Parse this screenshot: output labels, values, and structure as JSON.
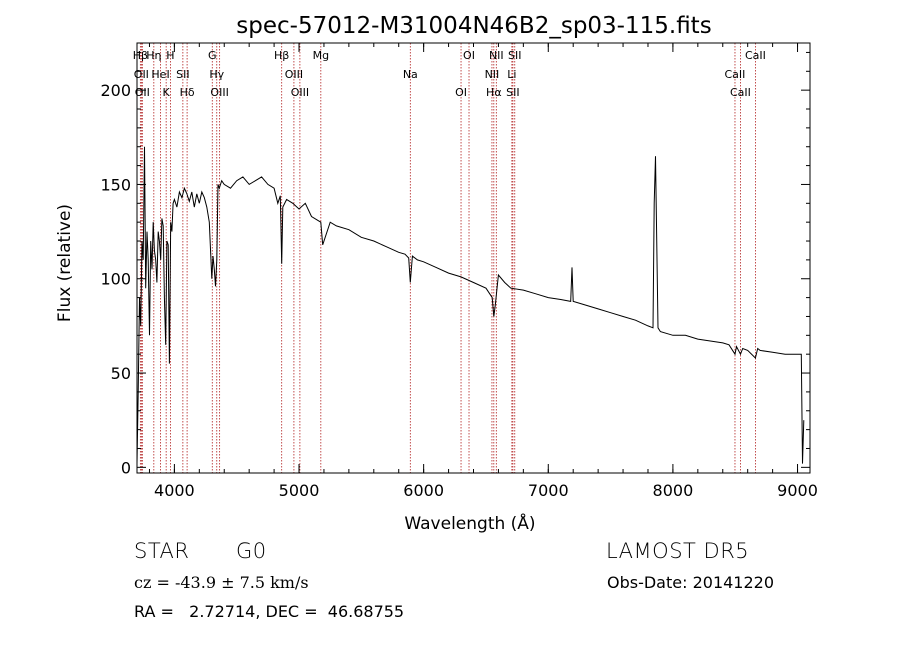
{
  "chart_data": {
    "type": "line",
    "title": "spec-57012-M31004N46B2_sp03-115.fits",
    "xlabel": "Wavelength (Å)",
    "ylabel": "Flux (relative)",
    "xlim": [
      3700,
      9100
    ],
    "ylim": [
      -3,
      225
    ],
    "xticks": [
      "4000",
      "5000",
      "6000",
      "7000",
      "8000",
      "9000"
    ],
    "yticks": [
      "0",
      "50",
      "100",
      "150",
      "200"
    ],
    "grid": false,
    "series": [
      {
        "x": [
          3700,
          3710,
          3720,
          3730,
          3740,
          3750,
          3760,
          3770,
          3780,
          3790,
          3800,
          3810,
          3820,
          3830,
          3840,
          3850,
          3860,
          3870,
          3880,
          3890,
          3900,
          3910,
          3920,
          3930,
          3940,
          3950,
          3960,
          3970,
          3980,
          3990,
          4000,
          4020,
          4040,
          4060,
          4080,
          4100,
          4120,
          4140,
          4160,
          4180,
          4200,
          4220,
          4240,
          4260,
          4280,
          4300,
          4310,
          4320,
          4330,
          4340,
          4350,
          4360,
          4380,
          4400,
          4450,
          4500,
          4550,
          4600,
          4650,
          4700,
          4750,
          4800,
          4830,
          4850,
          4861,
          4870,
          4900,
          4950,
          5000,
          5050,
          5100,
          5150,
          5175,
          5190,
          5250,
          5300,
          5400,
          5500,
          5600,
          5700,
          5800,
          5850,
          5880,
          5893,
          5910,
          5950,
          6000,
          6100,
          6200,
          6300,
          6400,
          6500,
          6550,
          6563,
          6575,
          6600,
          6650,
          6700,
          6800,
          6900,
          7000,
          7100,
          7180,
          7190,
          7200,
          7300,
          7400,
          7500,
          7600,
          7700,
          7800,
          7840,
          7850,
          7860,
          7880,
          7900,
          8000,
          8100,
          8200,
          8300,
          8400,
          8450,
          8498,
          8510,
          8542,
          8560,
          8600,
          8662,
          8680,
          8700,
          8800,
          8900,
          9000,
          9030,
          9040,
          9050
        ],
        "values": [
          2,
          40,
          90,
          75,
          120,
          110,
          170,
          95,
          125,
          110,
          70,
          120,
          105,
          130,
          115,
          110,
          98,
          125,
          120,
          110,
          132,
          128,
          90,
          65,
          120,
          118,
          55,
          130,
          125,
          140,
          142,
          138,
          146,
          143,
          148,
          145,
          141,
          146,
          138,
          145,
          140,
          146,
          143,
          138,
          130,
          100,
          112,
          105,
          96,
          110,
          150,
          148,
          152,
          150,
          148,
          152,
          154,
          150,
          152,
          154,
          150,
          148,
          140,
          144,
          108,
          138,
          142,
          140,
          137,
          140,
          133,
          131,
          130,
          118,
          130,
          128,
          126,
          122,
          120,
          117,
          114,
          113,
          111,
          98,
          112,
          110,
          109,
          106,
          103,
          101,
          98,
          95,
          90,
          80,
          86,
          102,
          98,
          95,
          94,
          92,
          90,
          89,
          88,
          106,
          88,
          86,
          84,
          82,
          80,
          78,
          75,
          74,
          140,
          165,
          74,
          72,
          70,
          70,
          68,
          67,
          66,
          65,
          60,
          64,
          60,
          63,
          62,
          58,
          63,
          62,
          61,
          60,
          60,
          60,
          2,
          25
        ]
      }
    ],
    "annotations": [
      {
        "name": "Hβ",
        "x": 3727
      },
      {
        "name": "OII",
        "x": 3735
      },
      {
        "name": "OII",
        "x": 3743
      },
      {
        "name": "Hη",
        "x": 3835
      },
      {
        "name": "HeI",
        "x": 3889
      },
      {
        "name": "K",
        "x": 3934
      },
      {
        "name": "H",
        "x": 3968
      },
      {
        "name": "SII",
        "x": 4068
      },
      {
        "name": "Hδ",
        "x": 4102
      },
      {
        "name": "G",
        "x": 4304
      },
      {
        "name": "Hγ",
        "x": 4340
      },
      {
        "name": "OIII",
        "x": 4363
      },
      {
        "name": "Hβ",
        "x": 4861
      },
      {
        "name": "OIII",
        "x": 4959
      },
      {
        "name": "OIII",
        "x": 5007
      },
      {
        "name": "Mg",
        "x": 5175
      },
      {
        "name": "Na",
        "x": 5893
      },
      {
        "name": "OI",
        "x": 6300
      },
      {
        "name": "OI",
        "x": 6364
      },
      {
        "name": "NII",
        "x": 6548
      },
      {
        "name": "Hα",
        "x": 6563
      },
      {
        "name": "NII",
        "x": 6583
      },
      {
        "name": "Li",
        "x": 6708
      },
      {
        "name": "SII",
        "x": 6716
      },
      {
        "name": "SII",
        "x": 6731
      },
      {
        "name": "CaII",
        "x": 8498
      },
      {
        "name": "CaII",
        "x": 8542
      },
      {
        "name": "CaII",
        "x": 8662
      }
    ]
  },
  "info": {
    "class": "STAR",
    "subclass": "G0",
    "survey": "LAMOST DR5",
    "cz": "cz = -43.9 ± 7.5 km/s",
    "obs_date": "Obs-Date: 20141220",
    "coords": "RA =   2.72714, DEC =  46.68755"
  },
  "colors": {
    "lines": "#b22222",
    "spectrum": "#000000"
  }
}
